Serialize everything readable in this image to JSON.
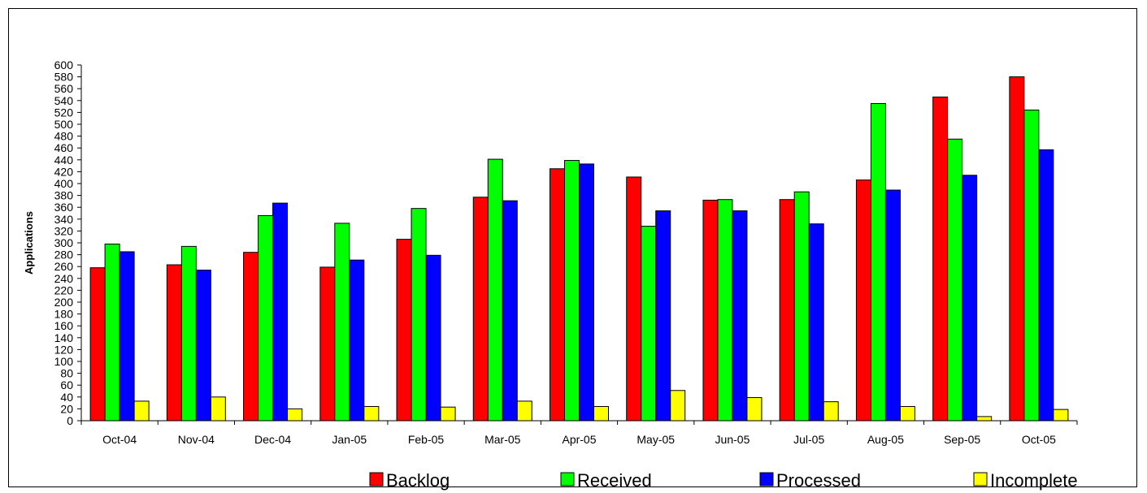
{
  "chart_data": {
    "type": "bar",
    "title": "",
    "xlabel": "",
    "ylabel": "Applications",
    "ylim": [
      0,
      600
    ],
    "ytick_step": 20,
    "grid": false,
    "legend_position": "bottom",
    "categories": [
      "Oct-04",
      "Nov-04",
      "Dec-04",
      "Jan-05",
      "Feb-05",
      "Mar-05",
      "Apr-05",
      "May-05",
      "Jun-05",
      "Jul-05",
      "Aug-05",
      "Sep-05",
      "Oct-05"
    ],
    "series": [
      {
        "name": "Backlog",
        "color": "#ff0000",
        "values": [
          258,
          263,
          284,
          259,
          306,
          377,
          425,
          411,
          372,
          373,
          406,
          546,
          580
        ]
      },
      {
        "name": "Received",
        "color": "#00ff00",
        "values": [
          298,
          294,
          346,
          333,
          358,
          441,
          439,
          328,
          373,
          386,
          535,
          475,
          524
        ]
      },
      {
        "name": "Processed",
        "color": "#0000ff",
        "values": [
          285,
          254,
          367,
          271,
          279,
          371,
          433,
          354,
          354,
          332,
          389,
          414,
          457
        ]
      },
      {
        "name": "Incomplete",
        "color": "#ffff00",
        "values": [
          33,
          40,
          20,
          24,
          23,
          33,
          24,
          51,
          39,
          32,
          24,
          7,
          19
        ]
      }
    ]
  }
}
